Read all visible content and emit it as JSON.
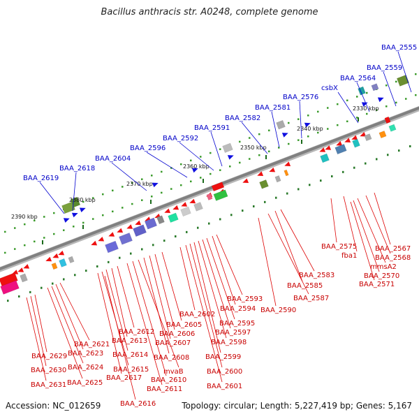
{
  "title": "Bacillus anthracis str. A0248, complete genome",
  "footer": {
    "accession": "Accession: NC_012659",
    "summary": "Topology: circular; Length: 5,227,419 bp; Genes: 5,167"
  },
  "scale_labels": [
    "2330 kbp",
    "2340 kbp",
    "2350 kbp",
    "2360 kbp",
    "2370 kbp",
    "2380 kbp",
    "2390 kbp"
  ],
  "top_labels": [
    "BAA_2555",
    "BAA_2559",
    "BAA_2564",
    "csbX",
    "BAA_2576",
    "BAA_2581",
    "BAA_2582",
    "BAA_2591",
    "BAA_2592",
    "BAA_2596",
    "BAA_2604",
    "BAA_2618",
    "BAA_2619"
  ],
  "bottom_labels": [
    "BAA_2575",
    "fba1",
    "BAA_2567",
    "BAA_2568",
    "mmsA2",
    "BAA_2570",
    "BAA_2571",
    "BAA_2583",
    "BAA_2585",
    "BAA_2587",
    "BAA_2590",
    "BAA_2593",
    "BAA_2594",
    "BAA_2595",
    "BAA_2597",
    "BAA_2598",
    "BAA_2599",
    "BAA_2600",
    "BAA_2601",
    "BAA_2602",
    "BAA_2605",
    "BAA_2606",
    "BAA_2607",
    "BAA_2608",
    "mvaB",
    "BAA_2610",
    "BAA_2611",
    "BAA_2612",
    "BAA_2613",
    "BAA_2614",
    "BAA_2615",
    "BAA_2617",
    "BAA_2616",
    "BAA_2621",
    "BAA_2623",
    "BAA_2624",
    "BAA_2625",
    "BAA_2629",
    "BAA_2630",
    "BAA_2631"
  ],
  "colors": {
    "forward_label": "#0000c8",
    "reverse_label": "#c80000",
    "backbone": "#808080"
  }
}
